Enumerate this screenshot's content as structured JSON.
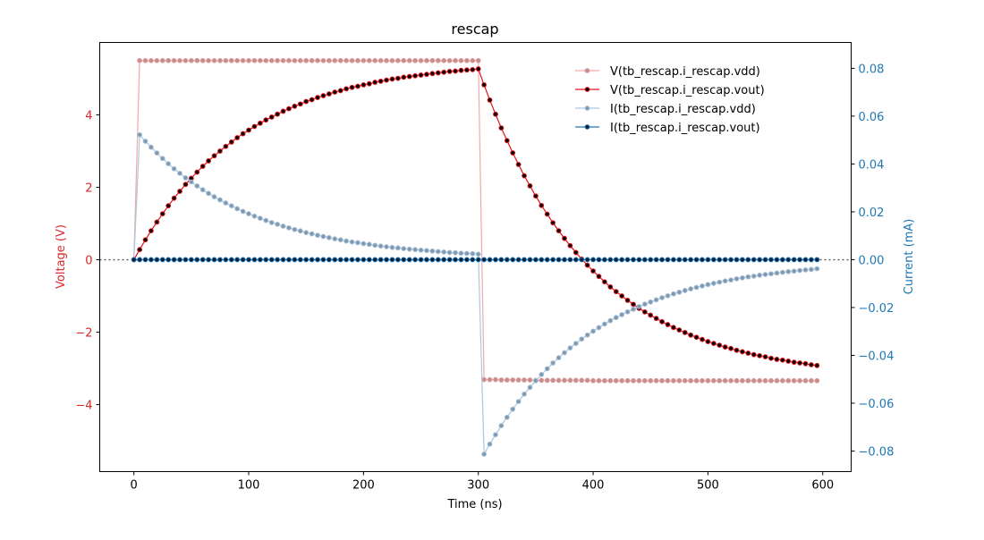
{
  "chart_data": {
    "type": "line",
    "title": "rescap",
    "xlabel": "Time (ns)",
    "ylabel_left": "Voltage (V)",
    "ylabel_right": "Current (mA)",
    "xlim": [
      -29.75,
      624.75
    ],
    "ylim_left": [
      -5.85,
      6.0
    ],
    "ylim_right": [
      -0.0886,
      0.0908
    ],
    "xticks": [
      0,
      100,
      200,
      300,
      400,
      500,
      600
    ],
    "yticks_left": [
      -4,
      -2,
      0,
      2,
      4
    ],
    "yticks_right": [
      -0.08,
      -0.06,
      -0.04,
      -0.02,
      0.0,
      0.02,
      0.04,
      0.06,
      0.08
    ],
    "ytick_labels_left": [
      "−4",
      "−2",
      "0",
      "2",
      "4"
    ],
    "ytick_labels_right": [
      "−0.08",
      "−0.06",
      "−0.04",
      "−0.02",
      "0.00",
      "0.02",
      "0.04",
      "0.06",
      "0.08"
    ],
    "grid": false,
    "legend_placement": "top-right",
    "left_color": "#d62728",
    "right_color": "#1f77b4",
    "x": [
      0,
      5,
      10,
      15,
      20,
      25,
      30,
      35,
      40,
      45,
      50,
      55,
      60,
      65,
      70,
      75,
      80,
      85,
      90,
      95,
      100,
      105,
      110,
      115,
      120,
      125,
      130,
      135,
      140,
      145,
      150,
      155,
      160,
      165,
      170,
      175,
      180,
      185,
      190,
      195,
      200,
      205,
      210,
      215,
      220,
      225,
      230,
      235,
      240,
      245,
      250,
      255,
      260,
      265,
      270,
      275,
      280,
      285,
      290,
      295,
      300,
      305,
      310,
      315,
      320,
      325,
      330,
      335,
      340,
      345,
      350,
      355,
      360,
      365,
      370,
      375,
      380,
      385,
      390,
      395,
      400,
      405,
      410,
      415,
      420,
      425,
      430,
      435,
      440,
      445,
      450,
      455,
      460,
      465,
      470,
      475,
      480,
      485,
      490,
      495,
      500,
      505,
      510,
      515,
      520,
      525,
      530,
      535,
      540,
      545,
      550,
      555,
      560,
      565,
      570,
      575,
      580,
      585,
      590,
      595
    ],
    "series": [
      {
        "name": "V(tb_rescap.i_rescap.vdd)",
        "axis": "left",
        "line": "#f2a9a9",
        "marker": "#c98a8a",
        "edge": "#d9a0a0",
        "values": [
          0,
          5.5,
          5.5,
          5.5,
          5.5,
          5.5,
          5.5,
          5.5,
          5.5,
          5.5,
          5.5,
          5.5,
          5.5,
          5.5,
          5.5,
          5.5,
          5.5,
          5.5,
          5.5,
          5.5,
          5.5,
          5.5,
          5.5,
          5.5,
          5.5,
          5.5,
          5.5,
          5.5,
          5.5,
          5.5,
          5.5,
          5.5,
          5.5,
          5.5,
          5.5,
          5.5,
          5.5,
          5.5,
          5.5,
          5.5,
          5.5,
          5.5,
          5.5,
          5.5,
          5.5,
          5.5,
          5.5,
          5.5,
          5.5,
          5.5,
          5.5,
          5.5,
          5.5,
          5.5,
          5.5,
          5.5,
          5.5,
          5.5,
          5.5,
          5.5,
          5.5,
          -3.31,
          -3.31,
          -3.31,
          -3.32,
          -3.32,
          -3.32,
          -3.32,
          -3.32,
          -3.32,
          -3.33,
          -3.33,
          -3.33,
          -3.33,
          -3.33,
          -3.33,
          -3.33,
          -3.33,
          -3.33,
          -3.33,
          -3.34,
          -3.34,
          -3.34,
          -3.34,
          -3.34,
          -3.34,
          -3.34,
          -3.34,
          -3.34,
          -3.34,
          -3.34,
          -3.34,
          -3.34,
          -3.34,
          -3.34,
          -3.34,
          -3.34,
          -3.34,
          -3.34,
          -3.34,
          -3.34,
          -3.34,
          -3.34,
          -3.34,
          -3.34,
          -3.34,
          -3.34,
          -3.34,
          -3.34,
          -3.34,
          -3.34,
          -3.34,
          -3.34,
          -3.34,
          -3.34,
          -3.34,
          -3.34,
          -3.34,
          -3.34,
          -3.34
        ]
      },
      {
        "name": "V(tb_rescap.i_rescap.vout)",
        "axis": "left",
        "line": "#e0151b",
        "marker": "#000000",
        "edge": "#e0151b",
        "values": [
          0,
          0.28,
          0.55,
          0.8,
          1.04,
          1.27,
          1.49,
          1.7,
          1.89,
          2.08,
          2.25,
          2.42,
          2.58,
          2.73,
          2.87,
          3.0,
          3.13,
          3.25,
          3.37,
          3.48,
          3.58,
          3.68,
          3.77,
          3.86,
          3.94,
          4.02,
          4.1,
          4.17,
          4.24,
          4.3,
          4.37,
          4.42,
          4.48,
          4.53,
          4.58,
          4.63,
          4.67,
          4.72,
          4.76,
          4.79,
          4.83,
          4.86,
          4.9,
          4.93,
          4.96,
          4.99,
          5.01,
          5.04,
          5.06,
          5.08,
          5.1,
          5.12,
          5.14,
          5.16,
          5.18,
          5.2,
          5.21,
          5.23,
          5.24,
          5.25,
          5.27,
          4.83,
          4.41,
          4.02,
          3.64,
          3.29,
          2.95,
          2.63,
          2.32,
          2.04,
          1.76,
          1.5,
          1.26,
          1.02,
          0.8,
          0.59,
          0.39,
          0.2,
          0.02,
          -0.15,
          -0.31,
          -0.46,
          -0.61,
          -0.75,
          -0.88,
          -1.0,
          -1.12,
          -1.23,
          -1.34,
          -1.44,
          -1.53,
          -1.62,
          -1.71,
          -1.79,
          -1.87,
          -1.94,
          -2.01,
          -2.08,
          -2.14,
          -2.2,
          -2.26,
          -2.31,
          -2.36,
          -2.41,
          -2.45,
          -2.5,
          -2.54,
          -2.58,
          -2.62,
          -2.65,
          -2.68,
          -2.72,
          -2.75,
          -2.77,
          -2.8,
          -2.83,
          -2.85,
          -2.87,
          -2.9,
          -2.92
        ]
      },
      {
        "name": "I(tb_rescap.i_rescap.vdd)",
        "axis": "right",
        "line": "#a9c8e0",
        "marker": "#7d98b0",
        "edge": "#a9c0d4",
        "values": [
          0,
          0.0522,
          0.0495,
          0.047,
          0.0446,
          0.0423,
          0.0401,
          0.038,
          0.0361,
          0.0342,
          0.0325,
          0.0308,
          0.0292,
          0.0277,
          0.0263,
          0.025,
          0.0237,
          0.0225,
          0.0213,
          0.0202,
          0.0192,
          0.0182,
          0.0173,
          0.0164,
          0.0155,
          0.0148,
          0.014,
          0.0133,
          0.0126,
          0.012,
          0.0113,
          0.0108,
          0.0102,
          0.0097,
          0.0092,
          0.0087,
          0.0083,
          0.0078,
          0.0074,
          0.0071,
          0.0067,
          0.0064,
          0.006,
          0.0057,
          0.0054,
          0.0051,
          0.0049,
          0.0046,
          0.0044,
          0.0042,
          0.004,
          0.0038,
          0.0036,
          0.0034,
          0.0032,
          0.003,
          0.0029,
          0.0027,
          0.0026,
          0.0025,
          0.0023,
          -0.0813,
          -0.0771,
          -0.0732,
          -0.0694,
          -0.0659,
          -0.0625,
          -0.0593,
          -0.0562,
          -0.0534,
          -0.0506,
          -0.048,
          -0.0456,
          -0.0432,
          -0.041,
          -0.0389,
          -0.0369,
          -0.035,
          -0.0332,
          -0.0315,
          -0.0299,
          -0.0284,
          -0.0269,
          -0.0255,
          -0.0242,
          -0.023,
          -0.0218,
          -0.0207,
          -0.0196,
          -0.0186,
          -0.0177,
          -0.0168,
          -0.0159,
          -0.0151,
          -0.0143,
          -0.0136,
          -0.0129,
          -0.0122,
          -0.0116,
          -0.011,
          -0.0104,
          -0.0099,
          -0.0094,
          -0.0089,
          -0.0085,
          -0.008,
          -0.0076,
          -0.0072,
          -0.0069,
          -0.0065,
          -0.0062,
          -0.0059,
          -0.0056,
          -0.0053,
          -0.005,
          -0.0048,
          -0.0045,
          -0.0043,
          -0.0041,
          -0.0038
        ]
      },
      {
        "name": "I(tb_rescap.i_rescap.vout)",
        "axis": "right",
        "line": "#1f77b4",
        "marker": "#0a1f3a",
        "edge": "#1f77b4",
        "values": [
          0,
          0,
          0,
          0,
          0,
          0,
          0,
          0,
          0,
          0,
          0,
          0,
          0,
          0,
          0,
          0,
          0,
          0,
          0,
          0,
          0,
          0,
          0,
          0,
          0,
          0,
          0,
          0,
          0,
          0,
          0,
          0,
          0,
          0,
          0,
          0,
          0,
          0,
          0,
          0,
          0,
          0,
          0,
          0,
          0,
          0,
          0,
          0,
          0,
          0,
          0,
          0,
          0,
          0,
          0,
          0,
          0,
          0,
          0,
          0,
          0,
          0,
          0,
          0,
          0,
          0,
          0,
          0,
          0,
          0,
          0,
          0,
          0,
          0,
          0,
          0,
          0,
          0,
          0,
          0,
          0,
          0,
          0,
          0,
          0,
          0,
          0,
          0,
          0,
          0,
          0,
          0,
          0,
          0,
          0,
          0,
          0,
          0,
          0,
          0,
          0,
          0,
          0,
          0,
          0,
          0,
          0,
          0,
          0,
          0,
          0,
          0,
          0,
          0,
          0,
          0,
          0,
          0,
          0,
          0
        ]
      }
    ]
  }
}
